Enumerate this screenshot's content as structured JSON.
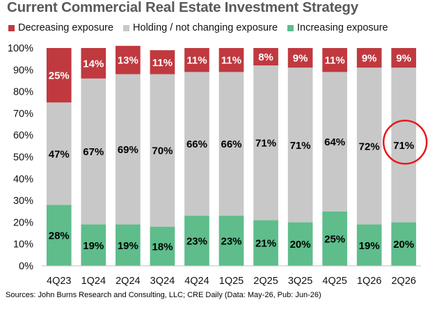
{
  "title": "Current Commercial Real Estate Investment Strategy",
  "source": "Sources: John Burns Research and Consulting, LLC; CRE Daily (Data: May-26, Pub: Jun-26)",
  "chart_data": {
    "type": "bar",
    "stacked": true,
    "title": "Current Commercial Real Estate Investment Strategy",
    "categories": [
      "4Q23",
      "1Q24",
      "2Q24",
      "3Q24",
      "4Q24",
      "1Q25",
      "2Q25",
      "3Q25",
      "4Q25",
      "1Q26",
      "2Q26"
    ],
    "series": [
      {
        "name": "Increasing exposure",
        "color": "#5ebd8b",
        "values": [
          28,
          19,
          19,
          18,
          23,
          23,
          21,
          20,
          25,
          19,
          20
        ],
        "labels": [
          "28%",
          "19%",
          "19%",
          "18%",
          "23%",
          "23%",
          "21%",
          "20%",
          "25%",
          "19%",
          "20%"
        ]
      },
      {
        "name": "Holding / not changing exposure",
        "color": "#c8c8c8",
        "values": [
          47,
          67,
          69,
          70,
          66,
          66,
          71,
          71,
          64,
          72,
          71
        ],
        "labels": [
          "47%",
          "67%",
          "69%",
          "70%",
          "66%",
          "66%",
          "71%",
          "71%",
          "64%",
          "72%",
          "71%"
        ]
      },
      {
        "name": "Decreasing exposure",
        "color": "#c0393f",
        "values": [
          25,
          14,
          13,
          11,
          11,
          11,
          8,
          9,
          11,
          9,
          9
        ],
        "labels": [
          "25%",
          "14%",
          "13%",
          "11%",
          "11%",
          "11%",
          "8%",
          "9%",
          "11%",
          "9%",
          "9%"
        ]
      }
    ],
    "legend_order": [
      "Decreasing exposure",
      "Holding / not changing exposure",
      "Increasing exposure"
    ],
    "legend_position": "top-left",
    "y_ticks": [
      "0%",
      "10%",
      "20%",
      "30%",
      "40%",
      "50%",
      "60%",
      "70%",
      "80%",
      "90%",
      "100%"
    ],
    "ylim": [
      0,
      100
    ],
    "grid": false,
    "annotation": {
      "type": "circle",
      "category": "2Q26",
      "color": "#e8171f"
    }
  }
}
